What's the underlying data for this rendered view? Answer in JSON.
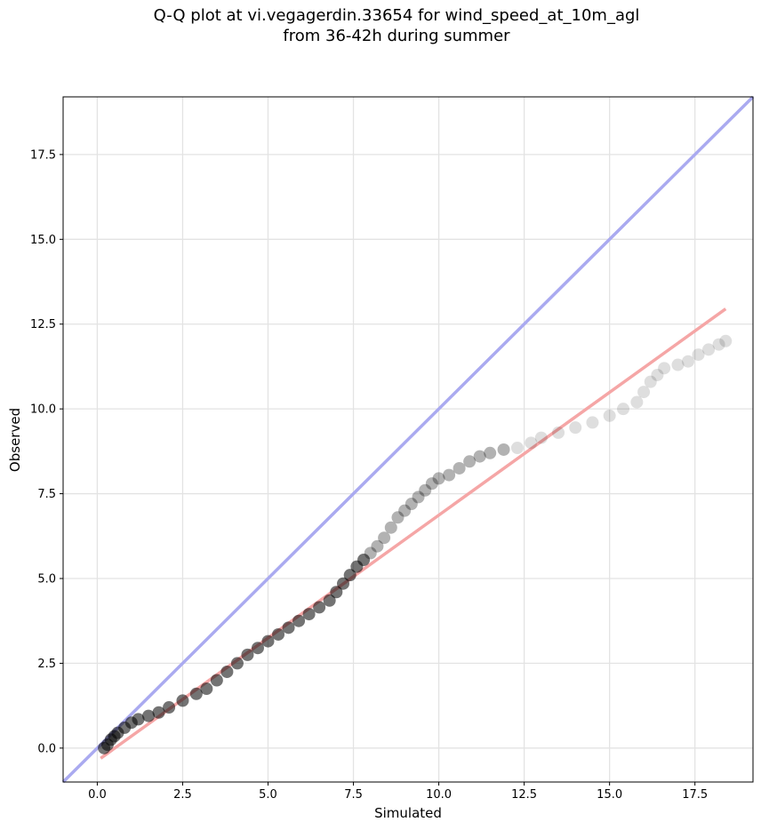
{
  "chart_data": {
    "type": "scatter",
    "title_lines": [
      "Q-Q plot at vi.vegagerdin.33654 for wind_speed_at_10m_agl",
      "from 36-42h during summer"
    ],
    "xlabel": "Simulated",
    "ylabel": "Observed",
    "xlim": [
      -1.0,
      19.2
    ],
    "ylim": [
      -1.0,
      19.2
    ],
    "x_ticks": [
      0.0,
      2.5,
      5.0,
      7.5,
      10.0,
      12.5,
      15.0,
      17.5
    ],
    "y_ticks": [
      0.0,
      2.5,
      5.0,
      7.5,
      10.0,
      12.5,
      15.0,
      17.5
    ],
    "x_tick_labels": [
      "0.0",
      "2.5",
      "5.0",
      "7.5",
      "10.0",
      "12.5",
      "15.0",
      "17.5"
    ],
    "y_tick_labels": [
      "0.0",
      "2.5",
      "5.0",
      "7.5",
      "10.0",
      "12.5",
      "15.0",
      "17.5"
    ],
    "grid": true,
    "reference_line": {
      "x": [
        -1.0,
        19.2
      ],
      "y": [
        -1.0,
        19.2
      ],
      "color": "#aaaaf0"
    },
    "fit_line": {
      "x": [
        0.1,
        18.4
      ],
      "y": [
        -0.3,
        12.95
      ],
      "color": "#f5a6a6"
    },
    "points": {
      "x": [
        0.2,
        0.3,
        0.4,
        0.5,
        0.6,
        0.8,
        1.0,
        1.2,
        1.5,
        1.8,
        2.1,
        2.5,
        2.9,
        3.2,
        3.5,
        3.8,
        4.1,
        4.4,
        4.7,
        5.0,
        5.3,
        5.6,
        5.9,
        6.2,
        6.5,
        6.8,
        7.0,
        7.2,
        7.4,
        7.6,
        7.8,
        8.0,
        8.2,
        8.4,
        8.6,
        8.8,
        9.0,
        9.2,
        9.4,
        9.6,
        9.8,
        10.0,
        10.3,
        10.6,
        10.9,
        11.2,
        11.5,
        11.9,
        12.3,
        12.7,
        13.0,
        13.5,
        14.0,
        14.5,
        15.0,
        15.4,
        15.8,
        16.0,
        16.2,
        16.4,
        16.6,
        17.0,
        17.3,
        17.6,
        17.9,
        18.2,
        18.4
      ],
      "y": [
        0.0,
        0.1,
        0.25,
        0.35,
        0.45,
        0.6,
        0.75,
        0.85,
        0.95,
        1.05,
        1.2,
        1.4,
        1.6,
        1.75,
        2.0,
        2.25,
        2.5,
        2.75,
        2.95,
        3.15,
        3.35,
        3.55,
        3.75,
        3.95,
        4.15,
        4.35,
        4.6,
        4.85,
        5.1,
        5.35,
        5.55,
        5.75,
        5.95,
        6.2,
        6.5,
        6.8,
        7.0,
        7.2,
        7.4,
        7.6,
        7.8,
        7.95,
        8.05,
        8.25,
        8.45,
        8.6,
        8.7,
        8.8,
        8.85,
        9.0,
        9.15,
        9.3,
        9.45,
        9.6,
        9.8,
        10.0,
        10.2,
        10.5,
        10.8,
        11.0,
        11.2,
        11.3,
        11.4,
        11.6,
        11.75,
        11.9,
        12.0
      ],
      "color": "#000000"
    }
  }
}
